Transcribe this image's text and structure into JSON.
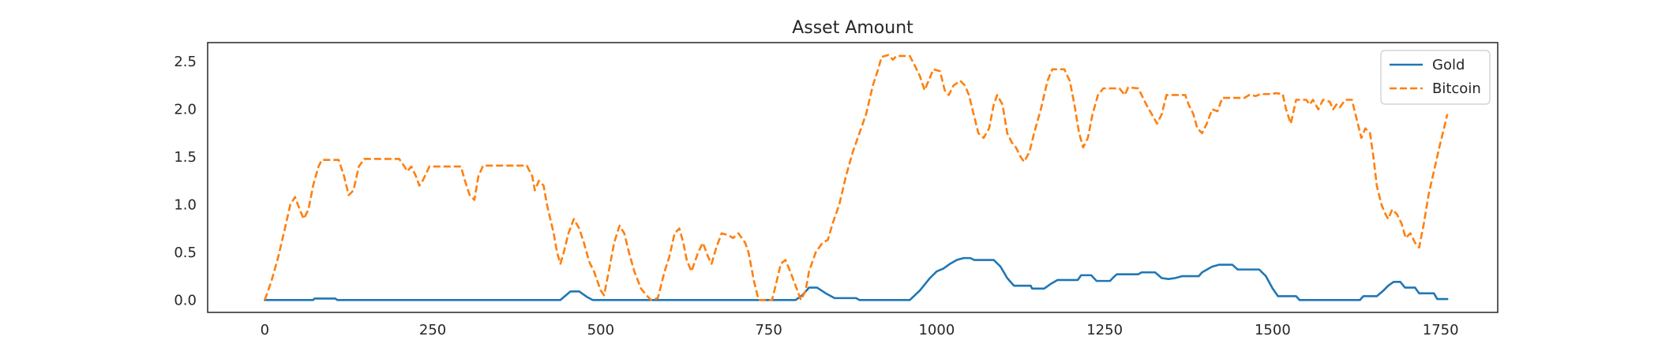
{
  "chart_data": {
    "type": "line",
    "title": "Asset Amount",
    "xlabel": "",
    "ylabel": "",
    "xlim": [
      -85,
      1835
    ],
    "ylim": [
      -0.13,
      2.7
    ],
    "xticks": [
      0,
      250,
      500,
      750,
      1000,
      1250,
      1500,
      1750
    ],
    "yticks": [
      0.0,
      0.5,
      1.0,
      1.5,
      2.0,
      2.5
    ],
    "xtick_labels": [
      "0",
      "250",
      "500",
      "750",
      "1000",
      "1250",
      "1500",
      "1750"
    ],
    "ytick_labels": [
      "0.0",
      "0.5",
      "1.0",
      "1.5",
      "2.0",
      "2.5"
    ],
    "grid": false,
    "legend": "top-right",
    "series": [
      {
        "name": "Gold",
        "color": "#1f77b4",
        "dash": "solid",
        "points": [
          [
            0,
            0
          ],
          [
            72,
            0
          ],
          [
            74,
            0.015
          ],
          [
            105,
            0.015
          ],
          [
            108,
            0
          ],
          [
            440,
            0
          ],
          [
            450,
            0.06
          ],
          [
            455,
            0.09
          ],
          [
            468,
            0.09
          ],
          [
            480,
            0.03
          ],
          [
            488,
            0
          ],
          [
            790,
            0
          ],
          [
            800,
            0.05
          ],
          [
            810,
            0.13
          ],
          [
            822,
            0.13
          ],
          [
            835,
            0.07
          ],
          [
            848,
            0.02
          ],
          [
            880,
            0.02
          ],
          [
            885,
            0
          ],
          [
            960,
            0
          ],
          [
            975,
            0.1
          ],
          [
            990,
            0.23
          ],
          [
            1000,
            0.3
          ],
          [
            1010,
            0.33
          ],
          [
            1020,
            0.38
          ],
          [
            1030,
            0.42
          ],
          [
            1040,
            0.44
          ],
          [
            1050,
            0.44
          ],
          [
            1056,
            0.42
          ],
          [
            1085,
            0.42
          ],
          [
            1095,
            0.35
          ],
          [
            1105,
            0.23
          ],
          [
            1115,
            0.15
          ],
          [
            1140,
            0.15
          ],
          [
            1142,
            0.12
          ],
          [
            1160,
            0.12
          ],
          [
            1170,
            0.17
          ],
          [
            1180,
            0.21
          ],
          [
            1210,
            0.21
          ],
          [
            1215,
            0.26
          ],
          [
            1230,
            0.26
          ],
          [
            1238,
            0.2
          ],
          [
            1258,
            0.2
          ],
          [
            1262,
            0.23
          ],
          [
            1268,
            0.27
          ],
          [
            1300,
            0.27
          ],
          [
            1305,
            0.29
          ],
          [
            1325,
            0.29
          ],
          [
            1335,
            0.23
          ],
          [
            1345,
            0.22
          ],
          [
            1355,
            0.23
          ],
          [
            1365,
            0.25
          ],
          [
            1390,
            0.25
          ],
          [
            1395,
            0.29
          ],
          [
            1405,
            0.33
          ],
          [
            1410,
            0.35
          ],
          [
            1420,
            0.37
          ],
          [
            1440,
            0.37
          ],
          [
            1448,
            0.32
          ],
          [
            1480,
            0.32
          ],
          [
            1490,
            0.25
          ],
          [
            1500,
            0.12
          ],
          [
            1508,
            0.04
          ],
          [
            1535,
            0.04
          ],
          [
            1540,
            0
          ],
          [
            1630,
            0
          ],
          [
            1635,
            0.04
          ],
          [
            1655,
            0.04
          ],
          [
            1665,
            0.1
          ],
          [
            1672,
            0.15
          ],
          [
            1680,
            0.19
          ],
          [
            1690,
            0.19
          ],
          [
            1697,
            0.13
          ],
          [
            1712,
            0.13
          ],
          [
            1718,
            0.07
          ],
          [
            1740,
            0.07
          ],
          [
            1745,
            0.01
          ],
          [
            1760,
            0.01
          ]
        ]
      },
      {
        "name": "Bitcoin",
        "color": "#ff7f0e",
        "dash": "dashed",
        "points": [
          [
            0,
            0
          ],
          [
            10,
            0.2
          ],
          [
            20,
            0.45
          ],
          [
            30,
            0.75
          ],
          [
            38,
            1.0
          ],
          [
            45,
            1.08
          ],
          [
            52,
            0.95
          ],
          [
            58,
            0.85
          ],
          [
            65,
            0.95
          ],
          [
            72,
            1.2
          ],
          [
            80,
            1.4
          ],
          [
            85,
            1.47
          ],
          [
            110,
            1.47
          ],
          [
            118,
            1.3
          ],
          [
            125,
            1.1
          ],
          [
            132,
            1.15
          ],
          [
            140,
            1.4
          ],
          [
            148,
            1.48
          ],
          [
            200,
            1.48
          ],
          [
            208,
            1.4
          ],
          [
            212,
            1.35
          ],
          [
            218,
            1.4
          ],
          [
            225,
            1.3
          ],
          [
            230,
            1.2
          ],
          [
            235,
            1.25
          ],
          [
            245,
            1.4
          ],
          [
            292,
            1.4
          ],
          [
            298,
            1.25
          ],
          [
            305,
            1.1
          ],
          [
            312,
            1.05
          ],
          [
            318,
            1.3
          ],
          [
            325,
            1.41
          ],
          [
            390,
            1.41
          ],
          [
            398,
            1.3
          ],
          [
            402,
            1.15
          ],
          [
            408,
            1.25
          ],
          [
            415,
            1.2
          ],
          [
            420,
            1.0
          ],
          [
            430,
            0.7
          ],
          [
            435,
            0.5
          ],
          [
            440,
            0.38
          ],
          [
            445,
            0.5
          ],
          [
            452,
            0.7
          ],
          [
            460,
            0.85
          ],
          [
            468,
            0.75
          ],
          [
            475,
            0.6
          ],
          [
            483,
            0.4
          ],
          [
            490,
            0.3
          ],
          [
            500,
            0.1
          ],
          [
            505,
            0.05
          ],
          [
            512,
            0.3
          ],
          [
            520,
            0.6
          ],
          [
            528,
            0.78
          ],
          [
            535,
            0.7
          ],
          [
            542,
            0.5
          ],
          [
            550,
            0.3
          ],
          [
            560,
            0.12
          ],
          [
            568,
            0.05
          ],
          [
            575,
            0
          ],
          [
            585,
            0.02
          ],
          [
            595,
            0.3
          ],
          [
            602,
            0.45
          ],
          [
            610,
            0.7
          ],
          [
            617,
            0.75
          ],
          [
            623,
            0.6
          ],
          [
            628,
            0.42
          ],
          [
            635,
            0.3
          ],
          [
            645,
            0.5
          ],
          [
            652,
            0.6
          ],
          [
            660,
            0.45
          ],
          [
            665,
            0.38
          ],
          [
            672,
            0.55
          ],
          [
            680,
            0.7
          ],
          [
            690,
            0.68
          ],
          [
            697,
            0.65
          ],
          [
            705,
            0.7
          ],
          [
            715,
            0.6
          ],
          [
            720,
            0.5
          ],
          [
            728,
            0.2
          ],
          [
            735,
            0
          ],
          [
            755,
            0
          ],
          [
            762,
            0.2
          ],
          [
            768,
            0.38
          ],
          [
            775,
            0.42
          ],
          [
            782,
            0.3
          ],
          [
            790,
            0.15
          ],
          [
            798,
            0
          ],
          [
            805,
            0.1
          ],
          [
            810,
            0.3
          ],
          [
            820,
            0.5
          ],
          [
            830,
            0.6
          ],
          [
            838,
            0.63
          ],
          [
            845,
            0.8
          ],
          [
            855,
            1.0
          ],
          [
            865,
            1.3
          ],
          [
            875,
            1.55
          ],
          [
            885,
            1.75
          ],
          [
            895,
            1.95
          ],
          [
            905,
            2.25
          ],
          [
            912,
            2.4
          ],
          [
            918,
            2.55
          ],
          [
            928,
            2.57
          ],
          [
            935,
            2.52
          ],
          [
            940,
            2.56
          ],
          [
            960,
            2.56
          ],
          [
            968,
            2.45
          ],
          [
            975,
            2.35
          ],
          [
            982,
            2.2
          ],
          [
            988,
            2.3
          ],
          [
            995,
            2.42
          ],
          [
            1005,
            2.4
          ],
          [
            1012,
            2.2
          ],
          [
            1018,
            2.15
          ],
          [
            1025,
            2.25
          ],
          [
            1035,
            2.3
          ],
          [
            1042,
            2.25
          ],
          [
            1048,
            2.15
          ],
          [
            1055,
            1.95
          ],
          [
            1062,
            1.75
          ],
          [
            1070,
            1.7
          ],
          [
            1078,
            1.8
          ],
          [
            1085,
            2.05
          ],
          [
            1090,
            2.15
          ],
          [
            1098,
            2.05
          ],
          [
            1105,
            1.75
          ],
          [
            1112,
            1.65
          ],
          [
            1118,
            1.6
          ],
          [
            1125,
            1.5
          ],
          [
            1130,
            1.45
          ],
          [
            1138,
            1.55
          ],
          [
            1145,
            1.75
          ],
          [
            1155,
            2.0
          ],
          [
            1165,
            2.3
          ],
          [
            1172,
            2.42
          ],
          [
            1190,
            2.42
          ],
          [
            1198,
            2.3
          ],
          [
            1205,
            2.05
          ],
          [
            1212,
            1.75
          ],
          [
            1218,
            1.6
          ],
          [
            1225,
            1.7
          ],
          [
            1232,
            1.95
          ],
          [
            1240,
            2.15
          ],
          [
            1248,
            2.22
          ],
          [
            1272,
            2.22
          ],
          [
            1280,
            2.15
          ],
          [
            1285,
            2.23
          ],
          [
            1300,
            2.22
          ],
          [
            1305,
            2.15
          ],
          [
            1312,
            2.05
          ],
          [
            1320,
            1.95
          ],
          [
            1328,
            1.85
          ],
          [
            1335,
            1.95
          ],
          [
            1342,
            2.15
          ],
          [
            1370,
            2.15
          ],
          [
            1375,
            2.05
          ],
          [
            1382,
            1.95
          ],
          [
            1388,
            1.8
          ],
          [
            1395,
            1.75
          ],
          [
            1402,
            1.85
          ],
          [
            1410,
            2.0
          ],
          [
            1418,
            1.98
          ],
          [
            1425,
            2.12
          ],
          [
            1458,
            2.12
          ],
          [
            1465,
            2.15
          ],
          [
            1475,
            2.14
          ],
          [
            1482,
            2.16
          ],
          [
            1498,
            2.16
          ],
          [
            1505,
            2.17
          ],
          [
            1515,
            2.16
          ],
          [
            1520,
            2.0
          ],
          [
            1527,
            1.85
          ],
          [
            1535,
            2.1
          ],
          [
            1550,
            2.1
          ],
          [
            1555,
            2.05
          ],
          [
            1560,
            2.1
          ],
          [
            1568,
            2.0
          ],
          [
            1575,
            2.1
          ],
          [
            1585,
            2.08
          ],
          [
            1590,
            2.0
          ],
          [
            1595,
            2.05
          ],
          [
            1600,
            2.02
          ],
          [
            1608,
            2.1
          ],
          [
            1618,
            2.1
          ],
          [
            1625,
            1.9
          ],
          [
            1632,
            1.7
          ],
          [
            1638,
            1.8
          ],
          [
            1645,
            1.75
          ],
          [
            1650,
            1.5
          ],
          [
            1655,
            1.2
          ],
          [
            1662,
            1.0
          ],
          [
            1668,
            0.9
          ],
          [
            1672,
            0.85
          ],
          [
            1678,
            0.95
          ],
          [
            1685,
            0.9
          ],
          [
            1692,
            0.8
          ],
          [
            1698,
            0.65
          ],
          [
            1705,
            0.7
          ],
          [
            1712,
            0.6
          ],
          [
            1718,
            0.55
          ],
          [
            1725,
            0.8
          ],
          [
            1732,
            1.1
          ],
          [
            1740,
            1.35
          ],
          [
            1748,
            1.6
          ],
          [
            1755,
            1.8
          ],
          [
            1760,
            1.95
          ]
        ]
      }
    ]
  }
}
